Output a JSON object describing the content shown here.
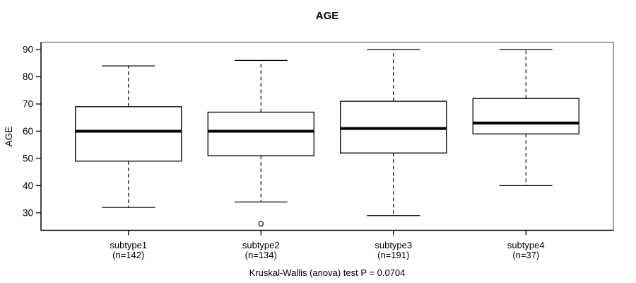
{
  "title": "AGE",
  "caption": "Kruskal-Wallis (anova) test P = 0.0704",
  "y_axis_label": "AGE",
  "colors": {
    "background": "#ffffff",
    "frame": "#808080",
    "axis": "#000000",
    "box_border": "#000000",
    "box_fill": "#ffffff",
    "median": "#000000",
    "text": "#000000"
  },
  "chart_data": {
    "type": "boxplot",
    "title": "AGE",
    "xlabel": "",
    "ylabel": "AGE",
    "caption": "Kruskal-Wallis (anova) test P = 0.0704",
    "ylim": [
      23.6,
      92.6
    ],
    "yticks": [
      30,
      40,
      50,
      60,
      70,
      80,
      90
    ],
    "grid": false,
    "legend": "none",
    "series": [
      {
        "label": "subtype1",
        "sublabel": "(n=142)",
        "n": 142,
        "whisker_low": 32,
        "q1": 49,
        "median": 60,
        "q3": 69,
        "whisker_high": 84,
        "outliers": []
      },
      {
        "label": "subtype2",
        "sublabel": "(n=134)",
        "n": 134,
        "whisker_low": 34,
        "q1": 51,
        "median": 60,
        "q3": 67,
        "whisker_high": 86,
        "outliers": [
          26
        ]
      },
      {
        "label": "subtype3",
        "sublabel": "(n=191)",
        "n": 191,
        "whisker_low": 29,
        "q1": 52,
        "median": 61,
        "q3": 71,
        "whisker_high": 90,
        "outliers": []
      },
      {
        "label": "subtype4",
        "sublabel": "(n=37)",
        "n": 37,
        "whisker_low": 40,
        "q1": 59,
        "median": 63,
        "q3": 72,
        "whisker_high": 90,
        "outliers": []
      }
    ]
  }
}
